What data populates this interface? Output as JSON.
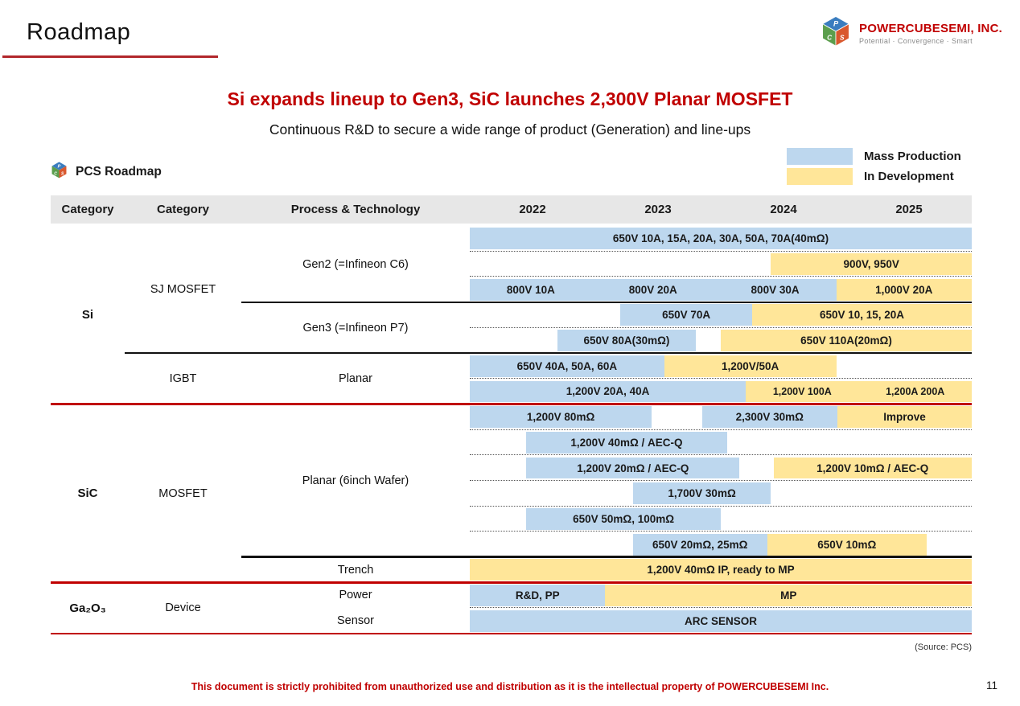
{
  "header": {
    "title": "Roadmap"
  },
  "logo": {
    "display": "POWERCUBESEMI, INC.",
    "tagline": "Potential · Convergence · Smart",
    "cube_letters": [
      "P",
      "C",
      "S"
    ],
    "brand_color": "#c00000"
  },
  "headline": {
    "title": "Si expands lineup to Gen3, SiC launches 2,300V Planar MOSFET",
    "subtitle": "Continuous R&D to secure a wide range of product (Generation) and line-ups"
  },
  "legend": {
    "items": [
      {
        "key": "mp",
        "label": "Mass Production",
        "color": "#BDD7EE"
      },
      {
        "key": "dev",
        "label": "In Development",
        "color": "#FFE699"
      }
    ]
  },
  "roadmap_label": "PCS Roadmap",
  "table": {
    "columns": [
      "Category",
      "Category",
      "Process & Technology"
    ],
    "years": [
      "2022",
      "2023",
      "2024",
      "2025"
    ],
    "category1_groups": [
      {
        "label": "Si",
        "start": 0,
        "span": 7
      },
      {
        "label": "SiC",
        "start": 7,
        "span": 7
      },
      {
        "label": "Ga₂O₃",
        "start": 14,
        "span": 2
      }
    ],
    "category2_groups": [
      {
        "label": "SJ MOSFET",
        "start": 0,
        "span": 5
      },
      {
        "label": "IGBT",
        "start": 5,
        "span": 2
      },
      {
        "label": "MOSFET",
        "start": 7,
        "span": 7
      },
      {
        "label": "Device",
        "start": 14,
        "span": 2
      }
    ],
    "process_groups": [
      {
        "label": "Gen2 (=Infineon C6)",
        "start": 0,
        "span": 3
      },
      {
        "label": "Gen3 (=Infineon P7)",
        "start": 3,
        "span": 2
      },
      {
        "label": "Planar",
        "start": 5,
        "span": 2
      },
      {
        "label": "Planar (6inch Wafer)",
        "start": 7,
        "span": 6
      },
      {
        "label": "Trench",
        "start": 13,
        "span": 1
      },
      {
        "label": "Power",
        "start": 14,
        "span": 1
      },
      {
        "label": "Sensor",
        "start": 15,
        "span": 1
      }
    ],
    "rows": [
      {
        "segments": [
          {
            "status": "mp",
            "from": 2022,
            "to": 2026,
            "labels": [
              "650V 10A, 15A, 20A, 30A, 50A, 70A(40mΩ)"
            ]
          }
        ]
      },
      {
        "segments": [
          {
            "status": "dev",
            "from": 2024.4,
            "to": 2026,
            "labels": [
              "900V, 950V"
            ]
          }
        ]
      },
      {
        "segments": [
          {
            "status": "mp",
            "from": 2022,
            "to": 2024.92,
            "labels": [
              "800V 10A",
              "800V 20A",
              "800V 30A"
            ]
          },
          {
            "status": "dev",
            "from": 2024.92,
            "to": 2026,
            "labels": [
              "1,000V 20A"
            ]
          }
        ]
      },
      {
        "segments": [
          {
            "status": "mp",
            "from": 2023.2,
            "to": 2024.25,
            "labels": [
              "650V 70A"
            ]
          },
          {
            "status": "dev",
            "from": 2024.25,
            "to": 2026,
            "labels": [
              "650V 10, 15, 20A"
            ]
          }
        ]
      },
      {
        "segments": [
          {
            "status": "mp",
            "from": 2022.7,
            "to": 2023.8,
            "labels": [
              "650V 80A(30mΩ)"
            ]
          },
          {
            "status": "dev",
            "from": 2024,
            "to": 2026,
            "labels": [
              "650V 110A(20mΩ)"
            ]
          }
        ]
      },
      {
        "segments": [
          {
            "status": "mp",
            "from": 2022,
            "to": 2023.55,
            "labels": [
              "650V 40A, 50A, 60A"
            ]
          },
          {
            "status": "dev",
            "from": 2023.55,
            "to": 2024.92,
            "labels": [
              "1,200V/50A"
            ]
          }
        ]
      },
      {
        "segments": [
          {
            "status": "mp",
            "from": 2022,
            "to": 2024.2,
            "labels": [
              "1,200V 20A, 40A"
            ]
          },
          {
            "status": "dev",
            "from": 2024.2,
            "to": 2026,
            "labels": [
              "1,200V 100A",
              "1,200A 200A"
            ],
            "small": true
          }
        ]
      },
      {
        "segments": [
          {
            "status": "mp",
            "from": 2022,
            "to": 2023.45,
            "labels": [
              "1,200V 80mΩ"
            ]
          },
          {
            "status": "mp",
            "from": 2023.85,
            "to": 2024.93,
            "labels": [
              "2,300V 30mΩ"
            ]
          },
          {
            "status": "dev",
            "from": 2024.93,
            "to": 2026,
            "labels": [
              "Improve"
            ]
          }
        ]
      },
      {
        "segments": [
          {
            "status": "mp",
            "from": 2022.45,
            "to": 2024.05,
            "labels": [
              "1,200V 40mΩ / AEC-Q"
            ]
          }
        ]
      },
      {
        "segments": [
          {
            "status": "mp",
            "from": 2022.45,
            "to": 2024.15,
            "labels": [
              "1,200V 20mΩ / AEC-Q"
            ]
          },
          {
            "status": "dev",
            "from": 2024.42,
            "to": 2026,
            "labels": [
              "1,200V 10mΩ / AEC-Q"
            ]
          }
        ]
      },
      {
        "segments": [
          {
            "status": "mp",
            "from": 2023.3,
            "to": 2024.4,
            "labels": [
              "1,700V 30mΩ"
            ]
          }
        ]
      },
      {
        "segments": [
          {
            "status": "mp",
            "from": 2022.45,
            "to": 2024,
            "labels": [
              "650V 50mΩ, 100mΩ"
            ]
          }
        ]
      },
      {
        "segments": [
          {
            "status": "mp",
            "from": 2023.3,
            "to": 2024.37,
            "labels": [
              "650V 20mΩ, 25mΩ"
            ]
          },
          {
            "status": "dev",
            "from": 2024.37,
            "to": 2025.64,
            "labels": [
              "650V 10mΩ"
            ]
          }
        ]
      },
      {
        "segments": [
          {
            "status": "dev",
            "from": 2022,
            "to": 2026,
            "labels": [
              "1,200V 40mΩ IP, ready to MP"
            ]
          }
        ]
      },
      {
        "segments": [
          {
            "status": "mp",
            "from": 2022,
            "to": 2023.08,
            "labels": [
              "R&D, PP"
            ]
          },
          {
            "status": "dev",
            "from": 2023.08,
            "to": 2026,
            "labels": [
              "MP"
            ]
          }
        ]
      },
      {
        "segments": [
          {
            "status": "mp",
            "from": 2022,
            "to": 2026,
            "labels": [
              "ARC SENSOR"
            ]
          }
        ]
      }
    ],
    "dotted_after_rows": [
      0,
      1,
      3,
      5,
      7,
      8,
      9,
      10,
      11,
      14
    ],
    "section_lines": [
      {
        "after": 2,
        "from_col": "process",
        "color": "black"
      },
      {
        "after": 4,
        "from_col": "cat2",
        "color": "black"
      },
      {
        "after": 6,
        "from_col": "cat1",
        "color": "red"
      },
      {
        "after": 12,
        "from_col": "process",
        "color": "black"
      },
      {
        "after": 13,
        "from_col": "cat1",
        "color": "red"
      },
      {
        "after": 15,
        "from_col": "cat1",
        "color": "red"
      }
    ]
  },
  "footer": {
    "source": "(Source: PCS)",
    "disclaimer": "This document is strictly prohibited from unauthorized use and distribution as it is the intellectual property of POWERCUBESEMI Inc.",
    "page": "11"
  }
}
